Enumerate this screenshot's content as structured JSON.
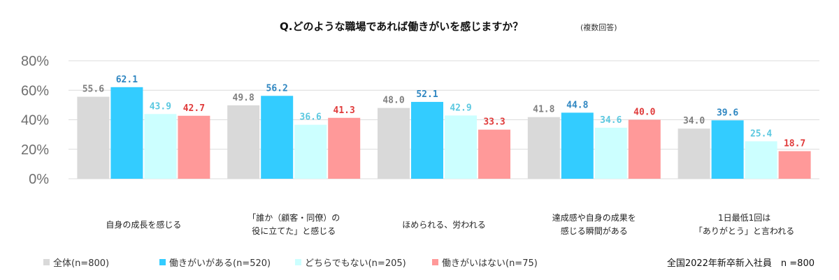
{
  "chart_data": {
    "type": "bar",
    "title": "Q.どのような職場であれば働きがいを感じますか？",
    "subtitle": "(複数回答)",
    "ylim": [
      0,
      80
    ],
    "y_ticks": [
      "0%",
      "20%",
      "40%",
      "60%",
      "80%"
    ],
    "y_tick_values": [
      0,
      20,
      40,
      60,
      80
    ],
    "grid": true,
    "legend_position": "bottom-left",
    "categories": [
      [
        "自身の成長を感じる"
      ],
      [
        "「誰か（顧客・同僚）の",
        "役に立てた」と感じる"
      ],
      [
        "ほめられる、労われる"
      ],
      [
        "達成感や自身の成果を",
        "感じる瞬間がある"
      ],
      [
        "1日最低1回は",
        "「ありがとう」と言われる"
      ]
    ],
    "series": [
      {
        "name": "全体(n=800)",
        "color": "#d9d9d9",
        "label_color": "#7f7f7f",
        "values": [
          55.6,
          49.8,
          48.0,
          41.8,
          34.0
        ],
        "labels": [
          "55.6",
          "49.8",
          "48.0",
          "41.8",
          "34.0"
        ]
      },
      {
        "name": "働きがいがある(n=520)",
        "color": "#33ccff",
        "label_color": "#2e86c1",
        "values": [
          62.1,
          56.2,
          52.1,
          44.8,
          39.6
        ],
        "labels": [
          "62.1",
          "56.2",
          "52.1",
          "44.8",
          "39.6"
        ]
      },
      {
        "name": "どちらでもない(n=205)",
        "color": "#ccffff",
        "label_color": "#5bc8e0",
        "values": [
          43.9,
          36.6,
          42.9,
          34.6,
          25.4
        ],
        "labels": [
          "43.9",
          "36.6",
          "42.9",
          "34.6",
          "25.4"
        ]
      },
      {
        "name": "働きがいはない(n=75)",
        "color": "#ff9999",
        "label_color": "#e03a3a",
        "values": [
          42.7,
          41.3,
          33.3,
          40.0,
          18.7
        ],
        "labels": [
          "42.7",
          "41.3",
          "33.3",
          "40.0",
          "18.7"
        ]
      }
    ],
    "note": "全国2022年新卒新入社員　n =800"
  }
}
